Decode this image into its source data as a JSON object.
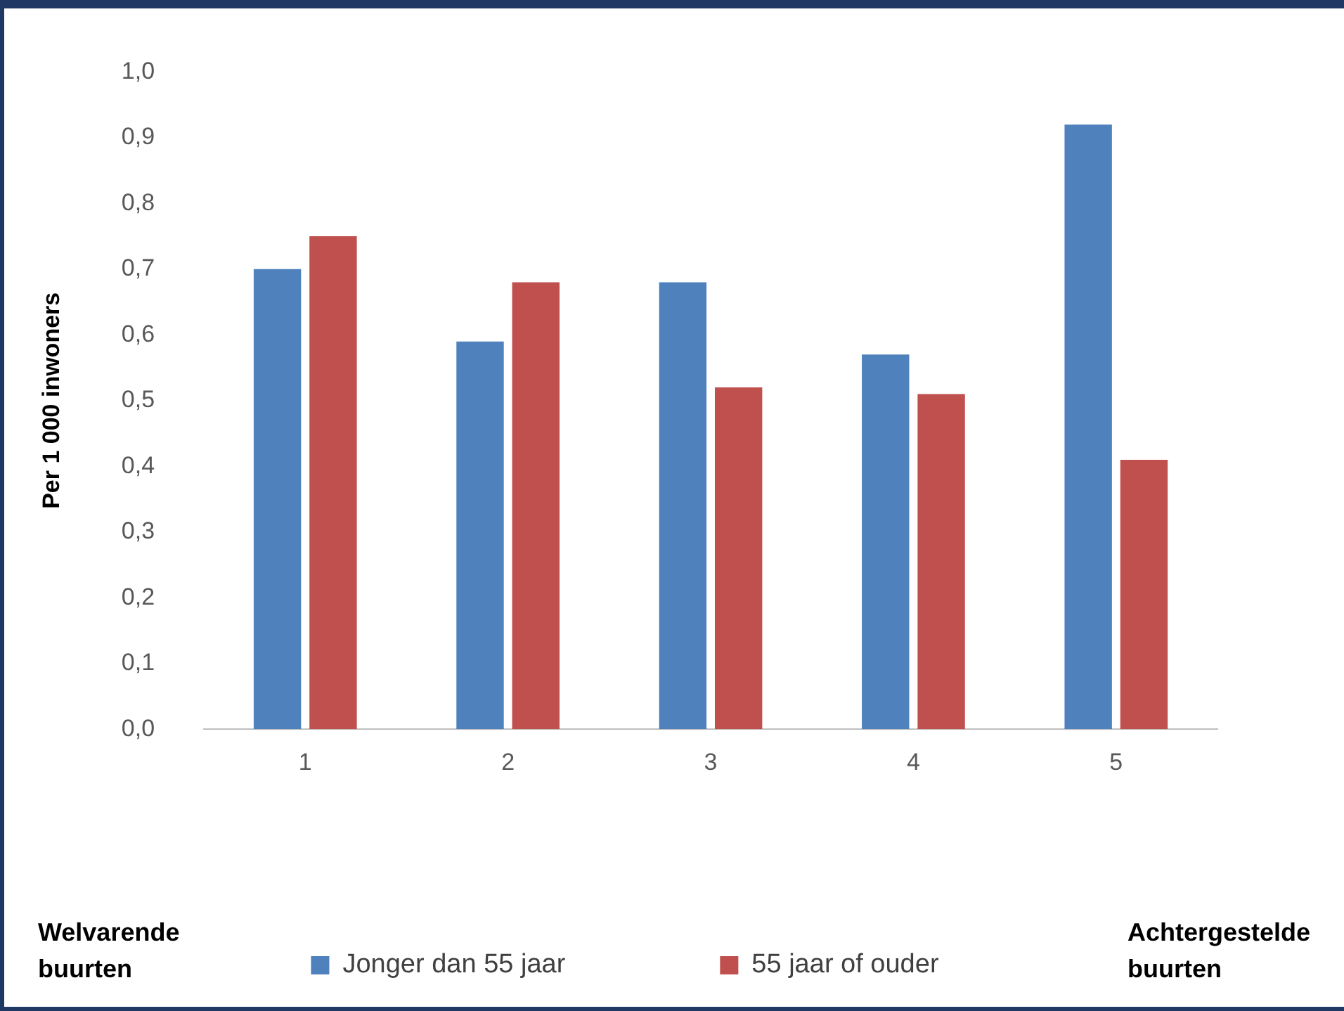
{
  "chart_data": {
    "type": "bar",
    "ylabel": "Per 1 000 inwoners",
    "categories": [
      "1",
      "2",
      "3",
      "4",
      "5"
    ],
    "series": [
      {
        "name": "Jonger dan 55 jaar",
        "color": "#4f81bd",
        "values": [
          0.7,
          0.59,
          0.68,
          0.57,
          0.92
        ]
      },
      {
        "name": "55 jaar of ouder",
        "color": "#c0504d",
        "values": [
          0.75,
          0.68,
          0.52,
          0.51,
          0.41
        ]
      }
    ],
    "ylim": [
      0,
      1
    ],
    "yticks": [
      {
        "value": 0,
        "label": "0,0"
      },
      {
        "value": 0.1,
        "label": "0,1"
      },
      {
        "value": 0.2,
        "label": "0,2"
      },
      {
        "value": 0.3,
        "label": "0,3"
      },
      {
        "value": 0.4,
        "label": "0,4"
      },
      {
        "value": 0.5,
        "label": "0,5"
      },
      {
        "value": 0.6,
        "label": "0,6"
      },
      {
        "value": 0.7,
        "label": "0,7"
      },
      {
        "value": 0.8,
        "label": "0,8"
      },
      {
        "value": 0.9,
        "label": "0,9"
      },
      {
        "value": 1,
        "label": "1,0"
      }
    ],
    "grid": false,
    "legend": "bottom",
    "annotations": [
      "Welvarende buurten",
      "Achtergestelde buurten"
    ]
  }
}
